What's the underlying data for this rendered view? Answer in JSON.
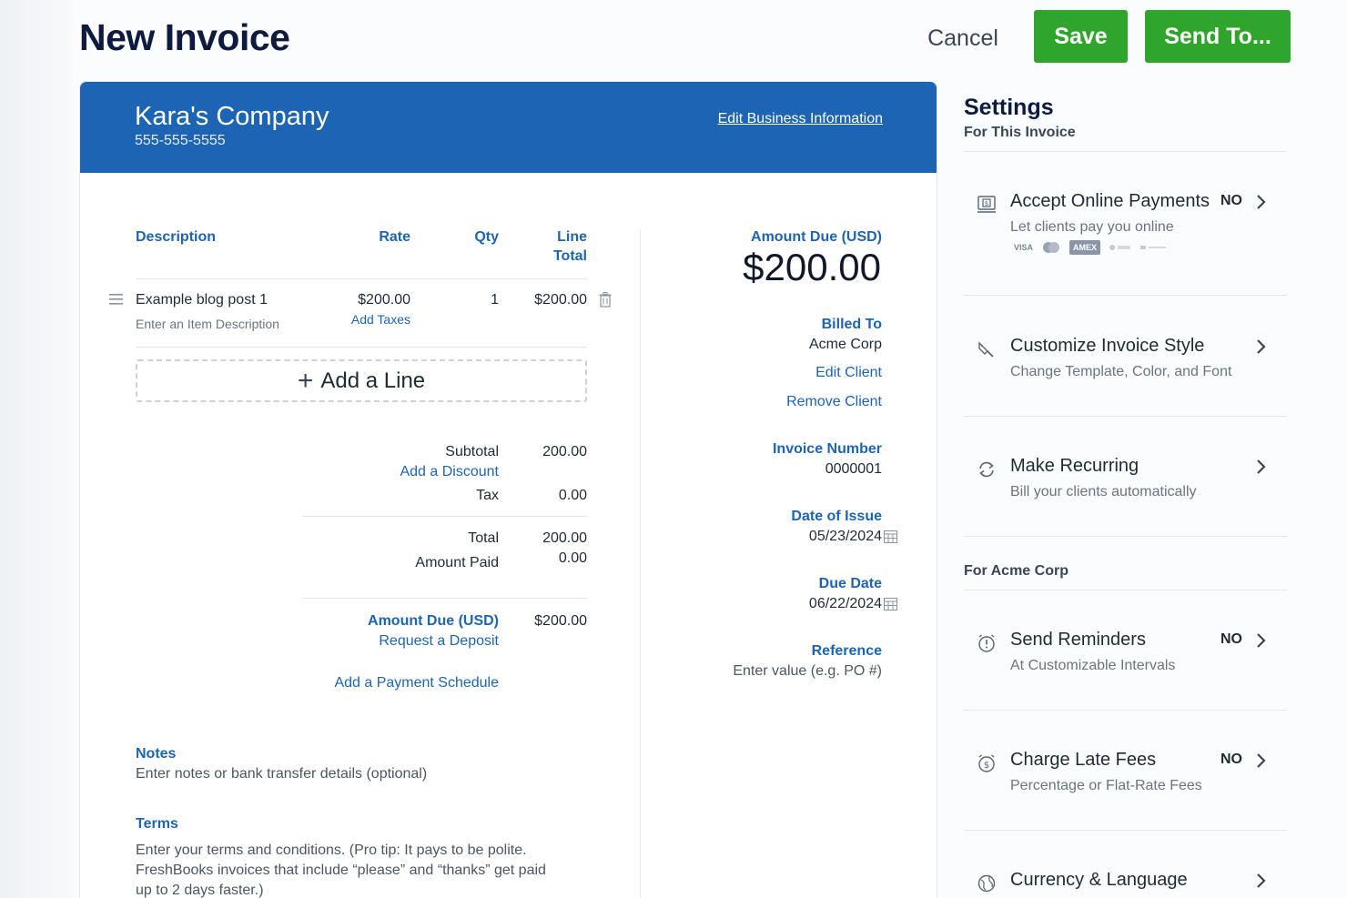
{
  "header": {
    "title": "New Invoice",
    "cancel_label": "Cancel",
    "save_label": "Save",
    "send_label": "Send To..."
  },
  "business": {
    "name": "Kara's Company",
    "phone": "555-555-5555",
    "edit_label": "Edit Business Information"
  },
  "line_items": {
    "headers": {
      "description": "Description",
      "rate": "Rate",
      "qty": "Qty",
      "line_total_1": "Line",
      "line_total_2": "Total"
    },
    "items": [
      {
        "name": "Example blog post 1",
        "description_placeholder": "Enter an Item Description",
        "rate": "$200.00",
        "add_taxes": "Add Taxes",
        "qty": "1",
        "total": "$200.00"
      }
    ],
    "add_line_label": "Add a Line"
  },
  "totals": {
    "subtotal_label": "Subtotal",
    "subtotal_value": "200.00",
    "add_discount": "Add a Discount",
    "tax_label": "Tax",
    "tax_value": "0.00",
    "total_label": "Total",
    "total_value": "200.00",
    "amount_paid_label": "Amount Paid",
    "amount_paid_value": "0.00",
    "amount_due_label": "Amount Due (USD)",
    "amount_due_value": "$200.00",
    "request_deposit": "Request a Deposit",
    "payment_schedule": "Add a Payment Schedule"
  },
  "notes": {
    "label": "Notes",
    "placeholder": "Enter notes or bank transfer details (optional)"
  },
  "terms": {
    "label": "Terms",
    "line1": "Enter your terms and conditions. (Pro tip: It pays to be polite.",
    "line2": "FreshBooks invoices that include “please” and “thanks” get paid",
    "line3": "up to 2 days faster.)"
  },
  "summary": {
    "amount_due_label": "Amount Due (USD)",
    "amount_due_value": "$200.00",
    "billed_to_label": "Billed To",
    "client_name": "Acme Corp",
    "edit_client": "Edit Client",
    "remove_client": "Remove Client",
    "invoice_number_label": "Invoice Number",
    "invoice_number": "0000001",
    "date_of_issue_label": "Date of Issue",
    "date_of_issue": "05/23/2024",
    "due_date_label": "Due Date",
    "due_date": "06/22/2024",
    "reference_label": "Reference",
    "reference_placeholder": "Enter value (e.g. PO #)"
  },
  "settings": {
    "title": "Settings",
    "subtitle": "For This Invoice",
    "client_section": "For Acme Corp",
    "items": [
      {
        "label": "Accept Online Payments",
        "desc": "Let clients pay you online",
        "value": "NO",
        "icon": "payment-icon"
      },
      {
        "label": "Customize Invoice Style",
        "desc": "Change Template, Color, and Font",
        "icon": "style-icon"
      },
      {
        "label": "Make Recurring",
        "desc": "Bill your clients automatically",
        "icon": "recurring-icon"
      },
      {
        "label": "Send Reminders",
        "desc": "At Customizable Intervals",
        "value": "NO",
        "icon": "reminder-icon"
      },
      {
        "label": "Charge Late Fees",
        "desc": "Percentage or Flat-Rate Fees",
        "value": "NO",
        "icon": "late-fee-icon"
      },
      {
        "label": "Currency & Language",
        "icon": "globe-icon"
      }
    ],
    "payment_logos": [
      "VISA",
      "AMEX"
    ]
  },
  "colors": {
    "brand_blue": "#1d64b5",
    "button_green": "#2fa52b"
  }
}
